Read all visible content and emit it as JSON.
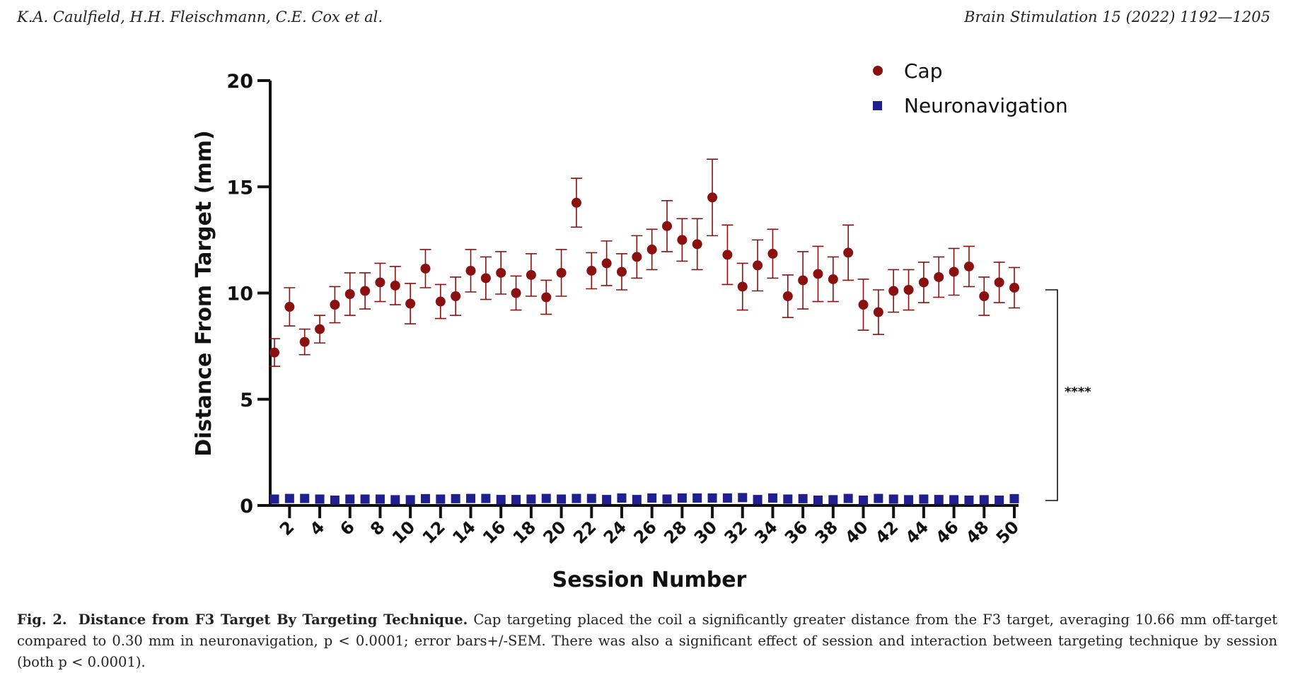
{
  "header": {
    "authors": "K.A. Caulfield, H.H. Fleischmann, C.E. Cox et al.",
    "journal": "Brain Stimulation 15 (2022) 1192—1205"
  },
  "caption": {
    "label": "Fig. 2.",
    "title": "Distance from F3 Target By Targeting Technique.",
    "text": "Cap targeting placed the coil a significantly greater distance from the F3 target, averaging 10.66 mm off-target compared to 0.30 mm in neuronavigation, p < 0.0001; error bars+/-SEM. There was also a significant effect of session and interaction between targeting technique by session (both p < 0.0001)."
  },
  "chart_data": {
    "type": "scatter",
    "title": "",
    "xlabel": "Session Number",
    "ylabel": "Distance From Target (mm)",
    "xlim": [
      1,
      50
    ],
    "ylim": [
      0,
      20
    ],
    "yticks": [
      "0",
      "5",
      "10",
      "15",
      "20"
    ],
    "xticks": [
      "2",
      "4",
      "6",
      "8",
      "10",
      "12",
      "14",
      "16",
      "18",
      "20",
      "22",
      "24",
      "26",
      "28",
      "30",
      "32",
      "34",
      "36",
      "38",
      "40",
      "42",
      "44",
      "46",
      "48",
      "50"
    ],
    "xtick_values": [
      2,
      4,
      6,
      8,
      10,
      12,
      14,
      16,
      18,
      20,
      22,
      24,
      26,
      28,
      30,
      32,
      34,
      36,
      38,
      40,
      42,
      44,
      46,
      48,
      50
    ],
    "legend_position": "top-right",
    "significance": "****",
    "series": [
      {
        "name": "Cap",
        "marker": "circle",
        "color": "#8b1010",
        "x": [
          1,
          2,
          3,
          4,
          5,
          6,
          7,
          8,
          9,
          10,
          11,
          12,
          13,
          14,
          15,
          16,
          17,
          18,
          19,
          20,
          21,
          22,
          23,
          24,
          25,
          26,
          27,
          28,
          29,
          30,
          31,
          32,
          33,
          34,
          35,
          36,
          37,
          38,
          39,
          40,
          41,
          42,
          43,
          44,
          45,
          46,
          47,
          48,
          49,
          50
        ],
        "y": [
          7.2,
          9.35,
          7.7,
          8.3,
          9.45,
          9.95,
          10.1,
          10.5,
          10.35,
          9.5,
          11.15,
          9.6,
          9.85,
          11.05,
          10.7,
          10.95,
          10.0,
          10.85,
          9.8,
          10.95,
          14.25,
          11.05,
          11.4,
          11.0,
          11.7,
          12.05,
          13.15,
          12.5,
          12.3,
          14.5,
          11.8,
          10.3,
          11.3,
          11.85,
          9.85,
          10.6,
          10.9,
          10.65,
          11.9,
          9.45,
          9.1,
          10.1,
          10.15,
          10.5,
          10.75,
          11.0,
          11.25,
          9.85,
          10.5,
          10.25
        ],
        "sem": [
          0.65,
          0.9,
          0.6,
          0.65,
          0.85,
          1.0,
          0.85,
          0.9,
          0.9,
          0.95,
          0.9,
          0.8,
          0.9,
          1.0,
          1.0,
          1.0,
          0.8,
          1.0,
          0.8,
          1.1,
          1.15,
          0.85,
          1.05,
          0.85,
          1.0,
          0.95,
          1.2,
          1.0,
          1.2,
          1.8,
          1.4,
          1.1,
          1.2,
          1.15,
          1.0,
          1.35,
          1.3,
          1.05,
          1.3,
          1.2,
          1.05,
          1.0,
          0.95,
          0.95,
          0.95,
          1.1,
          0.95,
          0.9,
          0.95,
          0.95
        ]
      },
      {
        "name": "Neuronavigation",
        "marker": "square",
        "color": "#1f1f8f",
        "x": [
          1,
          2,
          3,
          4,
          5,
          6,
          7,
          8,
          9,
          10,
          11,
          12,
          13,
          14,
          15,
          16,
          17,
          18,
          19,
          20,
          21,
          22,
          23,
          24,
          25,
          26,
          27,
          28,
          29,
          30,
          31,
          32,
          33,
          34,
          35,
          36,
          37,
          38,
          39,
          40,
          41,
          42,
          43,
          44,
          45,
          46,
          47,
          48,
          49,
          50
        ],
        "y": [
          0.3,
          0.33,
          0.33,
          0.3,
          0.25,
          0.3,
          0.3,
          0.3,
          0.27,
          0.27,
          0.32,
          0.3,
          0.32,
          0.33,
          0.33,
          0.28,
          0.28,
          0.3,
          0.33,
          0.3,
          0.33,
          0.33,
          0.28,
          0.35,
          0.28,
          0.35,
          0.3,
          0.35,
          0.35,
          0.35,
          0.35,
          0.37,
          0.28,
          0.35,
          0.3,
          0.32,
          0.25,
          0.27,
          0.33,
          0.25,
          0.33,
          0.3,
          0.27,
          0.3,
          0.28,
          0.27,
          0.25,
          0.27,
          0.25,
          0.32
        ],
        "sem": [
          0.05,
          0.05,
          0.05,
          0.05,
          0.05,
          0.05,
          0.05,
          0.05,
          0.05,
          0.05,
          0.05,
          0.05,
          0.05,
          0.05,
          0.05,
          0.05,
          0.05,
          0.05,
          0.05,
          0.05,
          0.05,
          0.05,
          0.05,
          0.05,
          0.05,
          0.05,
          0.05,
          0.05,
          0.05,
          0.05,
          0.05,
          0.05,
          0.05,
          0.05,
          0.05,
          0.05,
          0.05,
          0.05,
          0.05,
          0.05,
          0.05,
          0.05,
          0.05,
          0.05,
          0.05,
          0.05,
          0.05,
          0.05,
          0.05,
          0.05
        ]
      }
    ]
  }
}
